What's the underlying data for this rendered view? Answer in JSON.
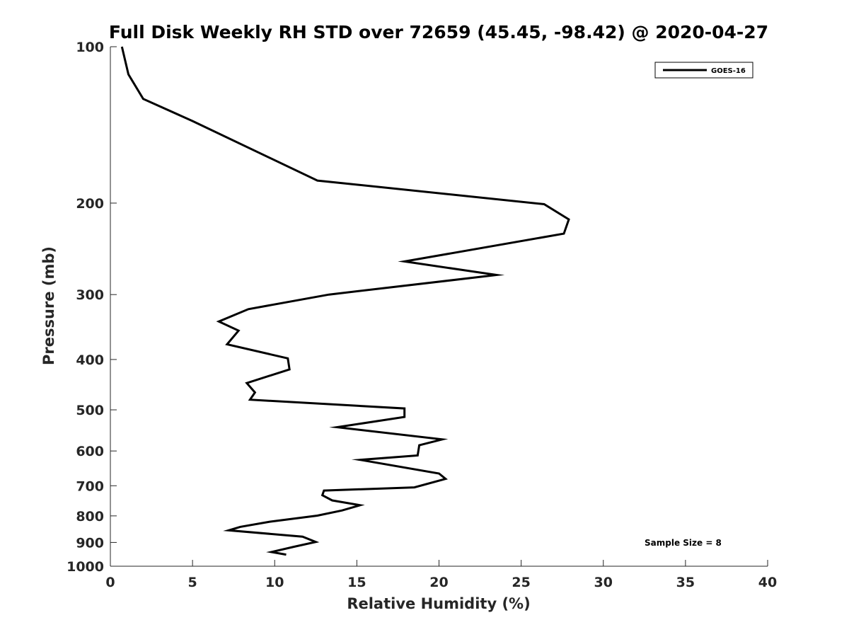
{
  "chart_data": {
    "type": "line",
    "title": "Full Disk Weekly RH STD over 72659 (45.45, -98.42) @ 2020-04-27",
    "xlabel": "Relative Humidity (%)",
    "ylabel": "Pressure (mb)",
    "xlim": [
      0,
      40
    ],
    "ylim": [
      100,
      1000
    ],
    "yscale": "log",
    "y_reversed": true,
    "grid": false,
    "xticks": [
      0,
      5,
      10,
      15,
      20,
      25,
      30,
      35,
      40
    ],
    "xtick_labels": [
      "0",
      "5",
      "10",
      "15",
      "20",
      "25",
      "30",
      "35",
      "40"
    ],
    "yticks": [
      100,
      200,
      300,
      400,
      500,
      600,
      700,
      800,
      900,
      1000
    ],
    "ytick_labels": [
      "100",
      "200",
      "300",
      "400",
      "500",
      "600",
      "700",
      "800",
      "900",
      "1000"
    ],
    "legend": {
      "position": "top-right",
      "entries": [
        "GOES-16"
      ]
    },
    "annotation": "Sample Size = 8",
    "series": [
      {
        "name": "GOES-16",
        "color": "#000000",
        "x": [
          0.7,
          1.1,
          2.0,
          5.0,
          12.6,
          26.4,
          27.9,
          27.6,
          17.9,
          23.5,
          13.3,
          8.4,
          6.6,
          7.8,
          7.1,
          10.8,
          10.9,
          8.3,
          8.8,
          8.5,
          17.9,
          17.9,
          13.8,
          20.2,
          18.8,
          18.7,
          15.2,
          20.0,
          20.4,
          18.5,
          13.0,
          12.9,
          13.5,
          15.2,
          14.1,
          12.6,
          9.7,
          7.9,
          7.2,
          11.7,
          12.5,
          11.2,
          9.8,
          10.7
        ],
        "y": [
          100,
          113,
          126,
          139,
          181,
          201,
          215,
          229,
          259,
          275,
          300,
          320,
          338,
          352,
          374,
          398,
          418,
          444,
          463,
          478,
          497,
          516,
          540,
          570,
          585,
          612,
          624,
          663,
          679,
          705,
          715,
          730,
          747,
          763,
          781,
          799,
          821,
          840,
          853,
          877,
          898,
          917,
          939,
          950
        ]
      }
    ]
  }
}
